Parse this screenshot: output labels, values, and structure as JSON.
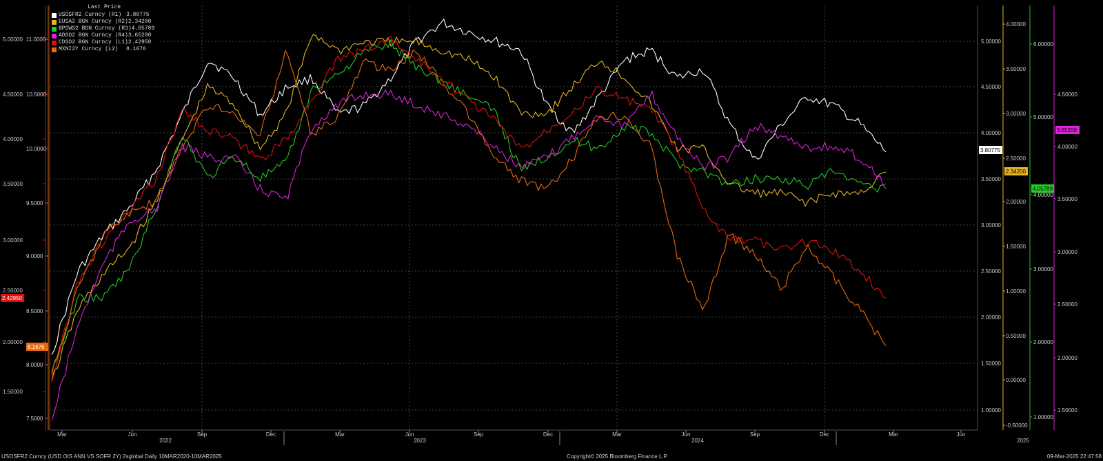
{
  "legend": {
    "title": "Last Price",
    "items": [
      {
        "name": "USOSFR2 Curncy  (R1)",
        "value": "3.80775",
        "color": "#ffffff"
      },
      {
        "name": "EUSA2 BGN Curncy  (R2)",
        "value": "2.34200",
        "color": "#e6b422"
      },
      {
        "name": "BPSWS2 BGN Curncy  (R3)",
        "value": "4.05789",
        "color": "#22cc22"
      },
      {
        "name": "ADSO2 BGN Curncy  (R4)",
        "value": "3.65200",
        "color": "#dd22dd"
      },
      {
        "name": "CDSO2 BGN Curncy  (L1)",
        "value": "2.42950",
        "color": "#dd1111"
      },
      {
        "name": "MXNI2Y Curncy  (L2)",
        "value": "8.1676",
        "color": "#e86a10"
      }
    ]
  },
  "footer": {
    "left": "USOSFR2 Curncy (USD OIS  ANN VS SOFR 2Y) 2sglobal  Daily 10MAR2020-10MAR2025",
    "center": "Copyright© 2025 Bloomberg Finance L.P.",
    "right": "09-Mar-2025 22:47:58"
  },
  "chart_data": {
    "type": "line",
    "x_ticks": [
      "Mar",
      "Jun",
      "Sep",
      "Dec",
      "Mar",
      "Jun",
      "Sep",
      "Dec",
      "Mar",
      "Jun",
      "Sep",
      "Dec",
      "Mar",
      "Jun"
    ],
    "year_labels": [
      "2022",
      "2023",
      "2024",
      "2025"
    ],
    "axes": {
      "L1": {
        "color": "#dd1111",
        "ticks": [
          "5.00000",
          "4.50000",
          "4.00000",
          "3.50000",
          "3.00000",
          "2.50000",
          "2.00000",
          "1.50000"
        ],
        "last": "2.42950"
      },
      "L2": {
        "color": "#e86a10",
        "ticks": [
          "11.0000",
          "10.5000",
          "10.0000",
          "9.5000",
          "9.0000",
          "8.5000",
          "8.0000",
          "7.5000"
        ],
        "last": "8.1676"
      },
      "R1": {
        "color": "#ffffff",
        "ticks": [
          "5.00000",
          "4.50000",
          "4.00000",
          "3.50000",
          "3.00000",
          "2.50000",
          "2.00000",
          "1.50000",
          "1.00000"
        ],
        "last": "3.80775"
      },
      "R2": {
        "color": "#e6b422",
        "ticks": [
          "4.00000",
          "3.50000",
          "3.00000",
          "2.50000",
          "2.00000",
          "1.50000",
          "1.00000",
          "0.50000",
          "0.00000",
          "-0.50000"
        ],
        "last": "2.34200"
      },
      "R3": {
        "color": "#22cc22",
        "ticks": [
          "6.00000",
          "5.00000",
          "4.00000",
          "3.00000",
          "2.00000",
          "1.00000"
        ],
        "last": "4.05789"
      },
      "R4": {
        "color": "#dd22dd",
        "ticks": [
          "4.50000",
          "4.00000",
          "3.50000",
          "3.00000",
          "2.50000",
          "2.00000",
          "1.50000"
        ],
        "last": "3.65200"
      }
    },
    "series": [
      {
        "name": "USOSFR2 Curncy (R1)",
        "axis": "R1",
        "color": "#ffffff",
        "values": [
          1.6,
          2.5,
          2.9,
          3.2,
          3.6,
          4.2,
          4.8,
          4.6,
          4.2,
          4.5,
          4.6,
          4.2,
          4.3,
          4.6,
          5.0,
          5.2,
          5.1,
          5.0,
          4.9,
          4.3,
          4.0,
          4.4,
          4.8,
          4.9,
          4.6,
          4.7,
          4.1,
          3.7,
          4.1,
          4.4,
          4.3,
          4.1,
          3.8
        ]
      },
      {
        "name": "EUSA2 BGN Curncy (R2)",
        "axis": "R2",
        "color": "#e6b422",
        "values": [
          0.0,
          0.8,
          1.2,
          1.5,
          2.0,
          2.7,
          3.3,
          3.1,
          2.6,
          3.0,
          3.9,
          3.7,
          3.8,
          3.8,
          3.8,
          3.7,
          3.6,
          3.4,
          3.0,
          3.0,
          3.3,
          3.6,
          3.4,
          3.1,
          2.6,
          2.6,
          2.2,
          2.1,
          2.1,
          2.0,
          2.1,
          2.1,
          2.34
        ]
      },
      {
        "name": "BPSWS2 BGN Curncy (R3)",
        "axis": "R3",
        "color": "#22cc22",
        "values": [
          1.6,
          2.6,
          2.6,
          3.0,
          3.8,
          4.8,
          4.2,
          4.5,
          4.2,
          4.4,
          5.4,
          5.6,
          5.9,
          6.0,
          5.7,
          5.5,
          5.3,
          5.1,
          4.3,
          4.5,
          4.7,
          4.6,
          4.9,
          4.8,
          4.4,
          4.3,
          4.1,
          4.2,
          4.2,
          4.1,
          4.3,
          4.1,
          4.06
        ]
      },
      {
        "name": "ADSO2 BGN Curncy (R4)",
        "axis": "R4",
        "color": "#dd22dd",
        "values": [
          1.4,
          2.3,
          2.9,
          3.3,
          3.4,
          4.0,
          3.9,
          3.9,
          3.6,
          3.5,
          4.2,
          4.4,
          4.5,
          4.5,
          4.4,
          4.3,
          4.2,
          4.0,
          3.8,
          3.9,
          4.1,
          4.3,
          4.2,
          4.5,
          4.1,
          3.8,
          3.9,
          4.2,
          4.1,
          4.0,
          4.0,
          3.9,
          3.65
        ]
      },
      {
        "name": "CDSO2 BGN Curncy (L1)",
        "axis": "L1",
        "color": "#dd1111",
        "values": [
          1.6,
          2.6,
          3.0,
          3.3,
          3.6,
          4.3,
          4.1,
          4.0,
          3.8,
          4.0,
          4.4,
          4.8,
          4.9,
          5.0,
          4.8,
          4.6,
          4.4,
          4.2,
          3.9,
          4.1,
          4.3,
          4.5,
          4.4,
          4.3,
          3.9,
          3.3,
          3.0,
          3.0,
          2.9,
          3.0,
          2.9,
          2.7,
          2.43
        ]
      },
      {
        "name": "MXNI2Y Curncy (L2)",
        "axis": "L2",
        "color": "#e86a10",
        "values": [
          7.9,
          8.7,
          9.2,
          9.4,
          9.5,
          10.0,
          10.4,
          10.3,
          10.1,
          10.9,
          10.1,
          10.3,
          10.8,
          10.7,
          10.9,
          10.6,
          10.3,
          9.9,
          9.7,
          9.6,
          9.9,
          10.3,
          10.3,
          10.0,
          9.0,
          8.5,
          9.2,
          9.0,
          8.7,
          9.1,
          8.8,
          8.5,
          8.17
        ]
      }
    ]
  }
}
